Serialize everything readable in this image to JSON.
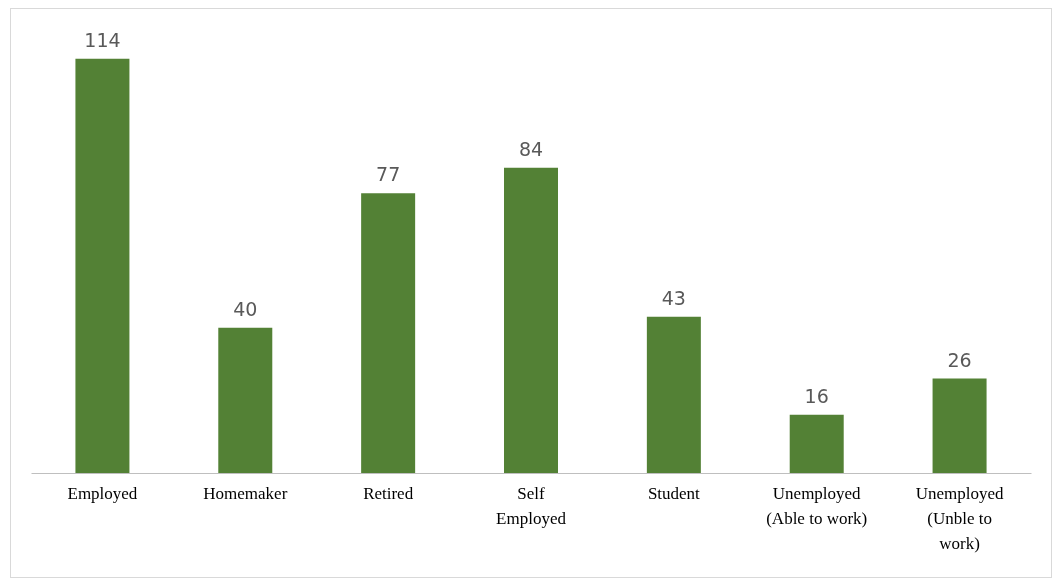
{
  "chart_data": {
    "type": "bar",
    "categories": [
      "Employed",
      "Homemaker",
      "Retired",
      "Self\nEmployed",
      "Student",
      "Unemployed\n(Able to work)",
      "Unemployed\n(Unble to\nwork)"
    ],
    "values": [
      114,
      40,
      77,
      84,
      43,
      16,
      26
    ],
    "color": "#538135",
    "data_labels": true
  }
}
